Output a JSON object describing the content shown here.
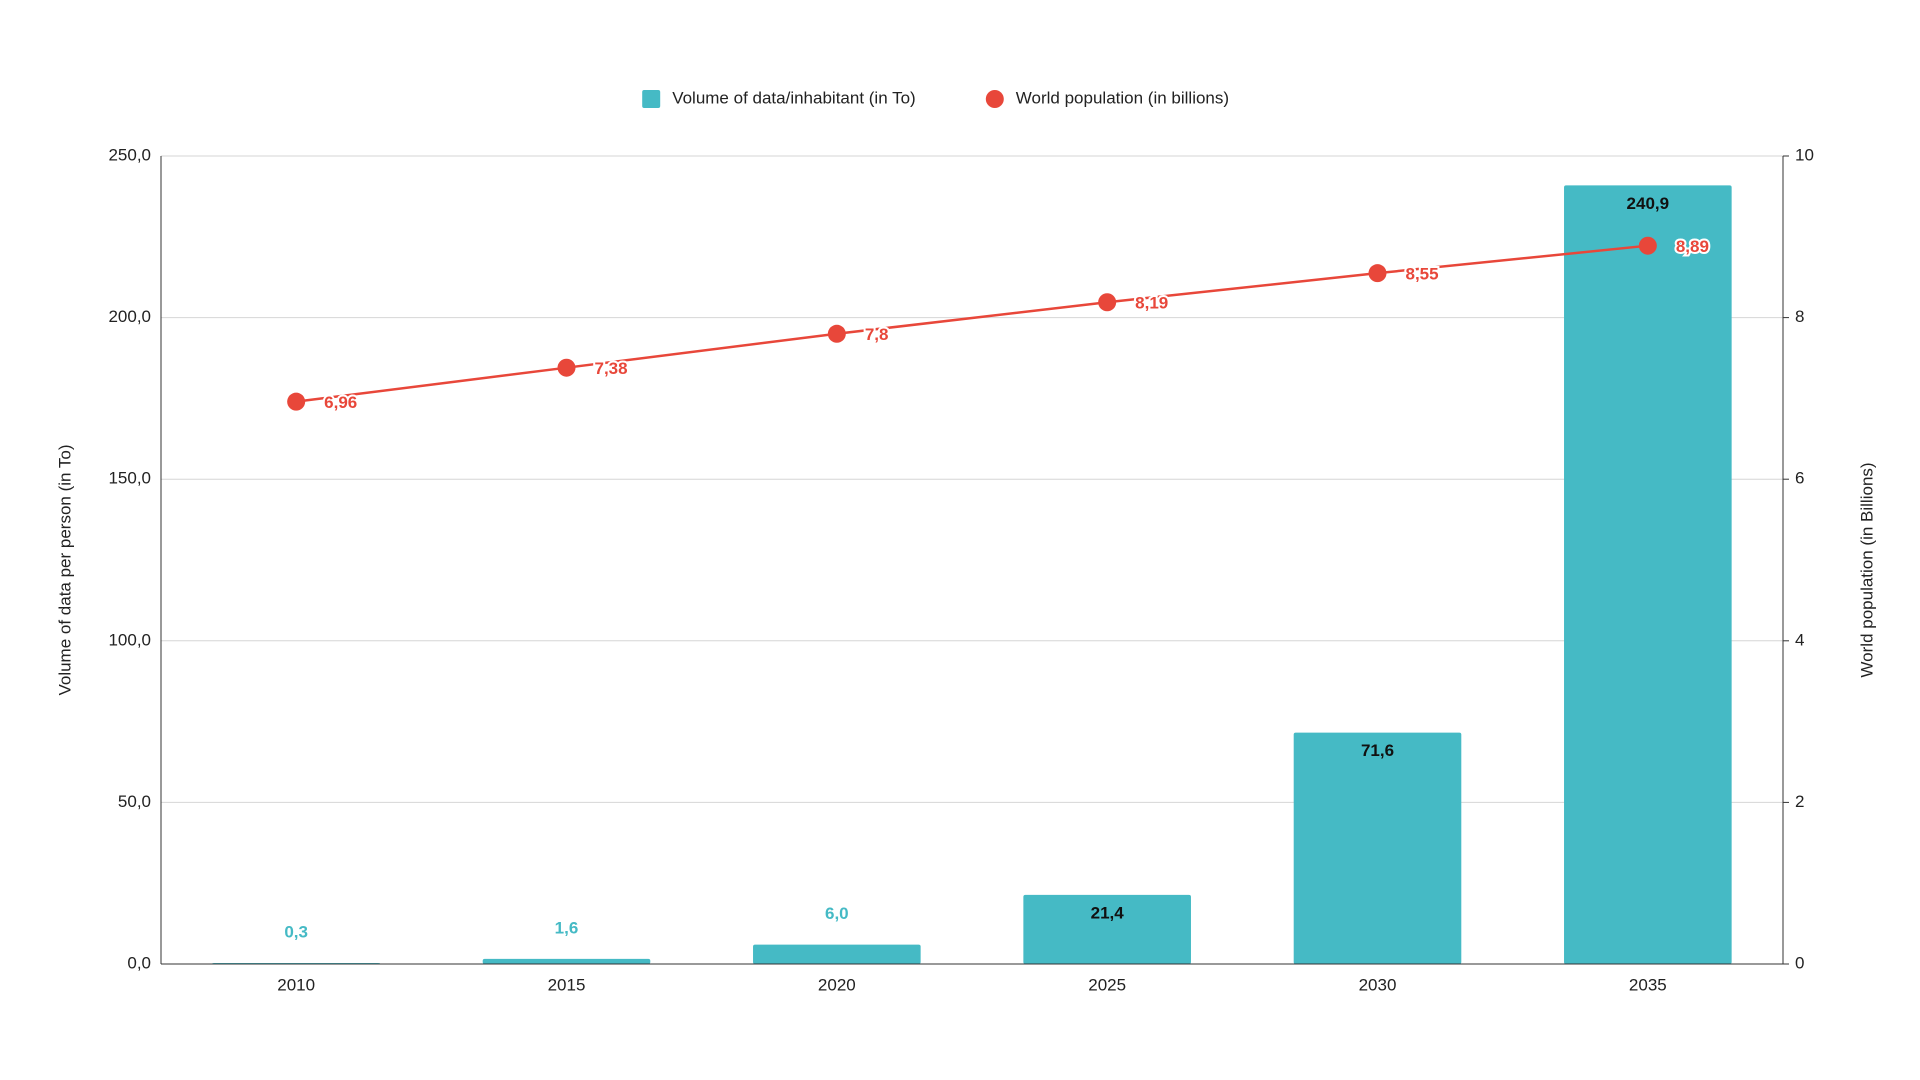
{
  "chart_data": {
    "type": "combo",
    "categories": [
      "2010",
      "2015",
      "2020",
      "2025",
      "2030",
      "2035"
    ],
    "series": [
      {
        "name": "Volume of data/inhabitant (in To)",
        "type": "bar",
        "color": "#45bac5",
        "values": [
          0.3,
          1.6,
          6.0,
          21.4,
          71.6,
          240.9
        ],
        "value_labels": [
          "0,3",
          "1,6",
          "6,0",
          "21,4",
          "71,6",
          "240,9"
        ]
      },
      {
        "name": "World population (in billions)",
        "type": "line",
        "axis": "y2",
        "color": "#e8473a",
        "values": [
          6.96,
          7.38,
          7.8,
          8.19,
          8.55,
          8.89
        ],
        "value_labels": [
          "6,96",
          "7,38",
          "7,8",
          "8,19",
          "8,55",
          "8,89"
        ]
      }
    ],
    "y_label": "Volume of data per person (in To)",
    "y2_label": "World population (in Billions)",
    "ylim": [
      0,
      250
    ],
    "yticks": [
      {
        "value": 0,
        "label": "0,0"
      },
      {
        "value": 50,
        "label": "50,0"
      },
      {
        "value": 100,
        "label": "100,0"
      },
      {
        "value": 150,
        "label": "150,0"
      },
      {
        "value": 200,
        "label": "200,0"
      },
      {
        "value": 250,
        "label": "250,0"
      }
    ],
    "y2lim": [
      0,
      10
    ],
    "y2ticks": [
      0,
      2,
      4,
      6,
      8,
      10
    ],
    "grid": true,
    "legend": "top"
  }
}
